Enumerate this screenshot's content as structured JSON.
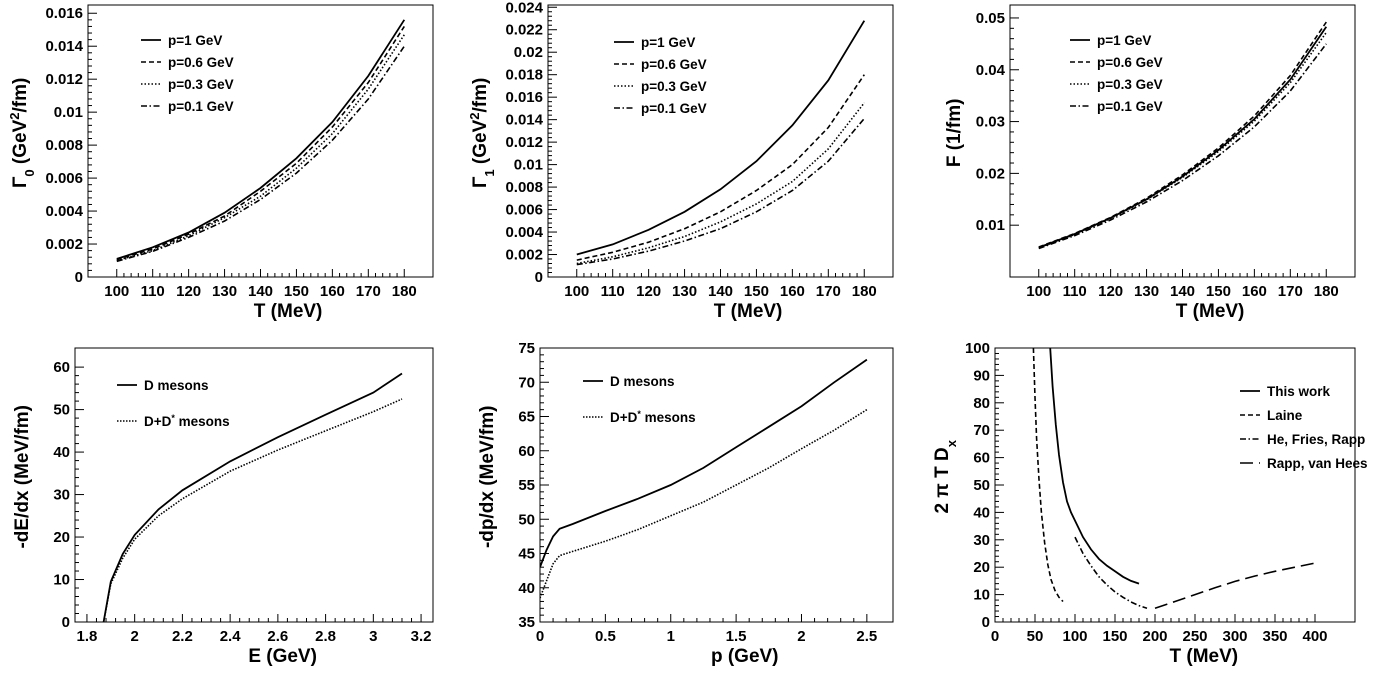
{
  "chart_data": [
    {
      "type": "line",
      "xlabel": "T (MeV)",
      "ylabel": "Γ₀ (GeV²/fm)",
      "ylabel_parts": [
        "Γ",
        "0",
        " (GeV",
        "2",
        "/fm)"
      ],
      "xlim": [
        92,
        188
      ],
      "ylim": [
        0,
        0.0165
      ],
      "xticks": [
        100,
        110,
        120,
        130,
        140,
        150,
        160,
        170,
        180
      ],
      "xtick_labels": [
        "100",
        "110",
        "120",
        "130",
        "140",
        "150",
        "160",
        "170",
        "180"
      ],
      "yticks": [
        0,
        0.002,
        0.004,
        0.006,
        0.008,
        0.01,
        0.012,
        0.014,
        0.016
      ],
      "ytick_labels": [
        "0",
        "0.002",
        "0.004",
        "0.006",
        "0.008",
        "0.01",
        "0.012",
        "0.014",
        "0.016"
      ],
      "legend_position": "top-left",
      "series": [
        {
          "name": "p=1 GeV",
          "style": "solid",
          "x": [
            100,
            110,
            120,
            130,
            140,
            150,
            160,
            170,
            180
          ],
          "y": [
            0.0011,
            0.0018,
            0.0027,
            0.0039,
            0.0054,
            0.0072,
            0.0094,
            0.0122,
            0.0156
          ]
        },
        {
          "name": "p=0.6 GeV",
          "style": "dashed",
          "x": [
            100,
            110,
            120,
            130,
            140,
            150,
            160,
            170,
            180
          ],
          "y": [
            0.00105,
            0.0017,
            0.0026,
            0.0037,
            0.0052,
            0.0069,
            0.0091,
            0.0118,
            0.0152
          ]
        },
        {
          "name": "p=0.3 GeV",
          "style": "dotted",
          "x": [
            100,
            110,
            120,
            130,
            140,
            150,
            160,
            170,
            180
          ],
          "y": [
            0.001,
            0.0016,
            0.0025,
            0.0036,
            0.0049,
            0.0066,
            0.0087,
            0.0114,
            0.0147
          ]
        },
        {
          "name": "p=0.1 GeV",
          "style": "dashdot",
          "x": [
            100,
            110,
            120,
            130,
            140,
            150,
            160,
            170,
            180
          ],
          "y": [
            0.00095,
            0.00155,
            0.0024,
            0.0034,
            0.0047,
            0.0063,
            0.0083,
            0.0108,
            0.014
          ]
        }
      ]
    },
    {
      "type": "line",
      "xlabel": "T (MeV)",
      "ylabel": "Γ₁ (GeV²/fm)",
      "ylabel_parts": [
        "Γ",
        "1",
        " (GeV",
        "2",
        "/fm)"
      ],
      "xlim": [
        92,
        188
      ],
      "ylim": [
        0,
        0.0242
      ],
      "xticks": [
        100,
        110,
        120,
        130,
        140,
        150,
        160,
        170,
        180
      ],
      "xtick_labels": [
        "100",
        "110",
        "120",
        "130",
        "140",
        "150",
        "160",
        "170",
        "180"
      ],
      "yticks": [
        0,
        0.002,
        0.004,
        0.006,
        0.008,
        0.01,
        0.012,
        0.014,
        0.016,
        0.018,
        0.02,
        0.022,
        0.024
      ],
      "ytick_labels": [
        "0",
        "0.002",
        "0.004",
        "0.006",
        "0.008",
        "0.01",
        "0.012",
        "0.014",
        "0.016",
        "0.018",
        "0.02",
        "0.022",
        "0.024"
      ],
      "legend_position": "top-left",
      "series": [
        {
          "name": "p=1 GeV",
          "style": "solid",
          "x": [
            100,
            110,
            120,
            130,
            140,
            150,
            160,
            170,
            180
          ],
          "y": [
            0.002,
            0.0029,
            0.0042,
            0.0058,
            0.0078,
            0.0103,
            0.0135,
            0.0175,
            0.0228
          ]
        },
        {
          "name": "p=0.6 GeV",
          "style": "dashed",
          "x": [
            100,
            110,
            120,
            130,
            140,
            150,
            160,
            170,
            180
          ],
          "y": [
            0.0015,
            0.0022,
            0.0031,
            0.0043,
            0.0058,
            0.0077,
            0.01,
            0.0133,
            0.018
          ]
        },
        {
          "name": "p=0.3 GeV",
          "style": "dotted",
          "x": [
            100,
            110,
            120,
            130,
            140,
            150,
            160,
            170,
            180
          ],
          "y": [
            0.0012,
            0.0018,
            0.0026,
            0.0036,
            0.0049,
            0.0065,
            0.0085,
            0.0114,
            0.0155
          ]
        },
        {
          "name": "p=0.1 GeV",
          "style": "dashdot",
          "x": [
            100,
            110,
            120,
            130,
            140,
            150,
            160,
            170,
            180
          ],
          "y": [
            0.0011,
            0.0016,
            0.0023,
            0.0032,
            0.0043,
            0.0058,
            0.0077,
            0.0103,
            0.0141
          ]
        }
      ]
    },
    {
      "type": "line",
      "xlabel": "T (MeV)",
      "ylabel": "F (1/fm)",
      "ylabel_parts": [
        "F (1/fm)"
      ],
      "xlim": [
        92,
        188
      ],
      "ylim": [
        0,
        0.0525
      ],
      "xticks": [
        100,
        110,
        120,
        130,
        140,
        150,
        160,
        170,
        180
      ],
      "xtick_labels": [
        "100",
        "110",
        "120",
        "130",
        "140",
        "150",
        "160",
        "170",
        "180"
      ],
      "yticks": [
        0.01,
        0.02,
        0.03,
        0.04,
        0.05
      ],
      "ytick_labels": [
        "0.01",
        "0.02",
        "0.03",
        "0.04",
        "0.05"
      ],
      "legend_position": "top-left",
      "series": [
        {
          "name": "p=1 GeV",
          "style": "solid",
          "x": [
            100,
            110,
            120,
            130,
            140,
            150,
            160,
            170,
            180
          ],
          "y": [
            0.0057,
            0.0083,
            0.0114,
            0.015,
            0.0194,
            0.0245,
            0.0305,
            0.0381,
            0.0483
          ]
        },
        {
          "name": "p=0.6 GeV",
          "style": "dashed",
          "x": [
            100,
            110,
            120,
            130,
            140,
            150,
            160,
            170,
            180
          ],
          "y": [
            0.0058,
            0.0084,
            0.0115,
            0.0152,
            0.0197,
            0.0249,
            0.0311,
            0.0389,
            0.0492
          ]
        },
        {
          "name": "p=0.3 GeV",
          "style": "dotted",
          "x": [
            100,
            110,
            120,
            130,
            140,
            150,
            160,
            170,
            180
          ],
          "y": [
            0.0056,
            0.0082,
            0.0113,
            0.0149,
            0.0192,
            0.0242,
            0.0301,
            0.0375,
            0.0472
          ]
        },
        {
          "name": "p=0.1 GeV",
          "style": "dashdot",
          "x": [
            100,
            110,
            120,
            130,
            140,
            150,
            160,
            170,
            180
          ],
          "y": [
            0.0055,
            0.008,
            0.011,
            0.0145,
            0.0186,
            0.0234,
            0.029,
            0.0359,
            0.045
          ]
        }
      ]
    },
    {
      "type": "line",
      "xlabel": "E (GeV)",
      "ylabel": "-dE/dx (MeV/fm)",
      "ylabel_parts": [
        "-dE/dx (MeV/fm)"
      ],
      "xlim": [
        1.75,
        3.25
      ],
      "ylim": [
        0,
        64.5
      ],
      "xticks": [
        1.8,
        2.0,
        2.2,
        2.4,
        2.6,
        2.8,
        3.0,
        3.2
      ],
      "xtick_labels": [
        "1.8",
        "2",
        "2.2",
        "2.4",
        "2.6",
        "2.8",
        "3",
        "3.2"
      ],
      "yticks": [
        0,
        10,
        20,
        30,
        40,
        50,
        60
      ],
      "ytick_labels": [
        "0",
        "10",
        "20",
        "30",
        "40",
        "50",
        "60"
      ],
      "legend_position": "top-left",
      "series": [
        {
          "name": "D mesons",
          "style": "solid",
          "x": [
            1.87,
            1.9,
            1.95,
            2.0,
            2.1,
            2.2,
            2.4,
            2.6,
            2.8,
            3.0,
            3.12
          ],
          "y": [
            0,
            9.5,
            16,
            20.5,
            26.5,
            31,
            37.8,
            43.5,
            48.8,
            54,
            58.5
          ]
        },
        {
          "name_parts": [
            "D+D",
            "*",
            " mesons"
          ],
          "style": "dotted-dense",
          "x": [
            1.87,
            1.9,
            1.95,
            2.0,
            2.1,
            2.2,
            2.4,
            2.6,
            2.8,
            3.0,
            3.12
          ],
          "y": [
            0,
            9,
            15,
            19.5,
            25,
            29,
            35.5,
            40.5,
            45,
            49.5,
            52.5
          ]
        }
      ]
    },
    {
      "type": "line",
      "xlabel": "p (GeV)",
      "ylabel": "-dp/dx (MeV/fm)",
      "ylabel_parts": [
        "-dp/dx (MeV/fm)"
      ],
      "xlim": [
        0,
        2.7
      ],
      "ylim": [
        35,
        75
      ],
      "xticks": [
        0,
        0.5,
        1.0,
        1.5,
        2.0,
        2.5
      ],
      "xtick_labels": [
        "0",
        "0.5",
        "1",
        "1.5",
        "2",
        "2.5"
      ],
      "yticks": [
        35,
        40,
        45,
        50,
        55,
        60,
        65,
        70,
        75
      ],
      "ytick_labels": [
        "35",
        "40",
        "45",
        "50",
        "55",
        "60",
        "65",
        "70",
        "75"
      ],
      "legend_position": "top-left",
      "series": [
        {
          "name": "D mesons",
          "style": "solid",
          "x": [
            0,
            0.05,
            0.1,
            0.15,
            0.25,
            0.5,
            0.75,
            1.0,
            1.25,
            1.5,
            1.75,
            2.0,
            2.25,
            2.5
          ],
          "y": [
            43,
            45.5,
            47.5,
            48.6,
            49.3,
            51.2,
            53,
            55,
            57.5,
            60.5,
            63.5,
            66.5,
            70,
            73.3
          ]
        },
        {
          "name_parts": [
            "D+D",
            "*",
            " mesons"
          ],
          "style": "dotted-dense",
          "x": [
            0,
            0.05,
            0.1,
            0.15,
            0.25,
            0.5,
            0.75,
            1.0,
            1.25,
            1.5,
            1.75,
            2.0,
            2.25,
            2.5
          ],
          "y": [
            38.5,
            41,
            43.5,
            44.7,
            45.3,
            46.8,
            48.5,
            50.5,
            52.5,
            55,
            57.5,
            60.3,
            63,
            66
          ]
        }
      ]
    },
    {
      "type": "line",
      "xlabel": "T (MeV)",
      "ylabel": "2 π T Dₓ",
      "ylabel_parts": [
        "2 π T D",
        "x"
      ],
      "xlim": [
        0,
        450
      ],
      "ylim": [
        0,
        100
      ],
      "xticks": [
        0,
        50,
        100,
        150,
        200,
        250,
        300,
        350,
        400
      ],
      "xtick_labels": [
        "0",
        "50",
        "100",
        "150",
        "200",
        "250",
        "300",
        "350",
        "400"
      ],
      "yticks": [
        0,
        10,
        20,
        30,
        40,
        50,
        60,
        70,
        80,
        90,
        100
      ],
      "ytick_labels": [
        "0",
        "10",
        "20",
        "30",
        "40",
        "50",
        "60",
        "70",
        "80",
        "90",
        "100"
      ],
      "legend_position": "top-right",
      "series": [
        {
          "name": "This work",
          "style": "solid",
          "x": [
            69,
            72,
            76,
            80,
            85,
            90,
            95,
            100,
            110,
            120,
            130,
            140,
            150,
            160,
            170,
            180
          ],
          "y": [
            100,
            86,
            72,
            61,
            51,
            44,
            40,
            37,
            31,
            26.5,
            23,
            20.5,
            18.5,
            16.5,
            15,
            14
          ]
        },
        {
          "name": "Laine",
          "style": "dashed",
          "x": [
            48,
            50,
            52,
            55,
            58,
            62,
            66,
            70,
            75,
            80,
            85
          ],
          "y": [
            100,
            82,
            67,
            52,
            40,
            29,
            21,
            15.5,
            11.5,
            9,
            7.5
          ]
        },
        {
          "name": "He, Fries, Rapp",
          "style": "dashdot",
          "x": [
            100,
            110,
            120,
            130,
            140,
            150,
            160,
            170,
            180,
            190
          ],
          "y": [
            31,
            25,
            20.5,
            16.5,
            13.5,
            11,
            9,
            7.3,
            6,
            5
          ]
        },
        {
          "name": "Rapp, van Hees",
          "style": "longdash",
          "x": [
            200,
            225,
            250,
            275,
            300,
            325,
            350,
            375,
            400
          ],
          "y": [
            5,
            7.5,
            10,
            12.5,
            14.8,
            16.8,
            18.5,
            20,
            21.5
          ]
        }
      ]
    }
  ]
}
